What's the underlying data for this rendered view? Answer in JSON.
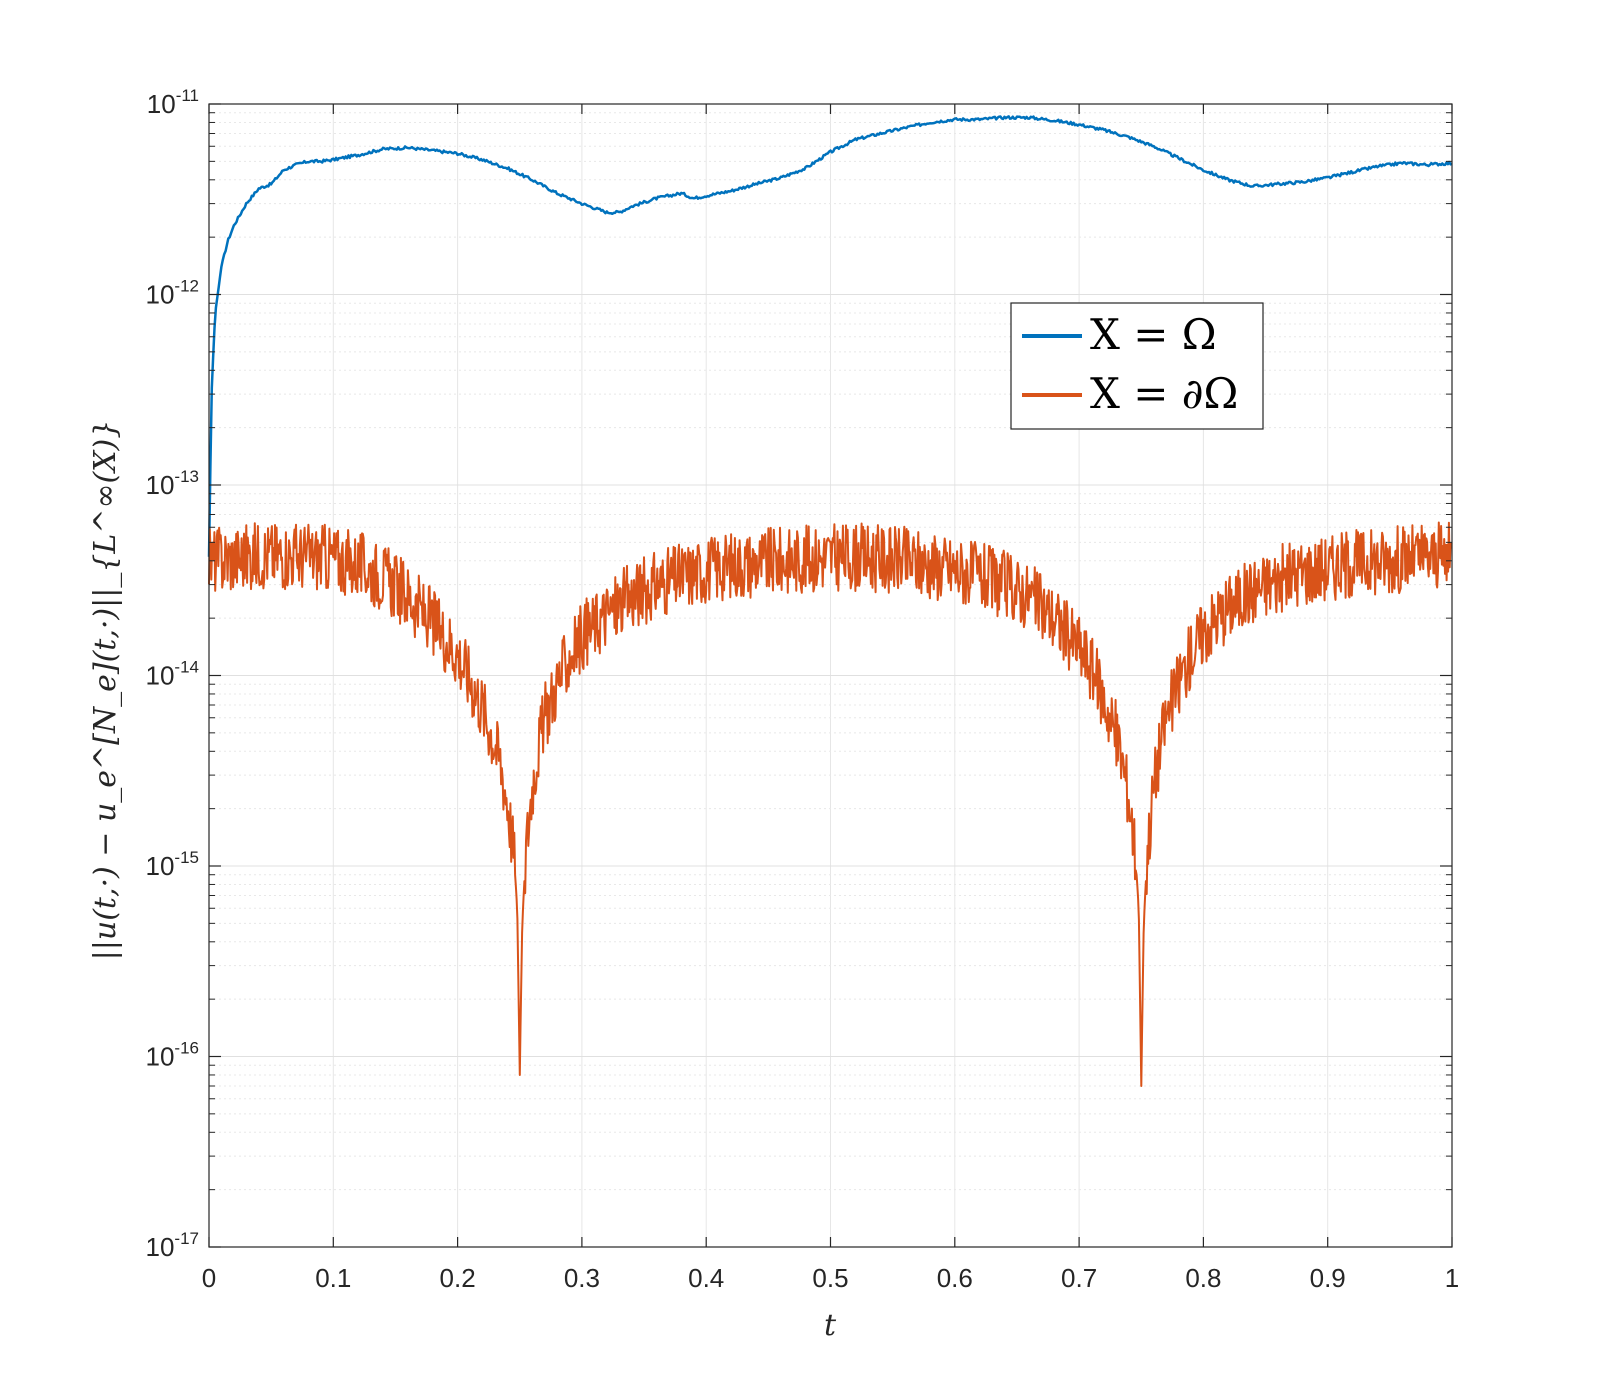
{
  "chart_data": {
    "type": "line",
    "xlabel": "t",
    "ylabel": "||u(t,·) − u_e^[N_e](t,·)||_{L^∞(X)}",
    "xlim": [
      0,
      1
    ],
    "ylim": [
      1e-17,
      1e-11
    ],
    "yscale": "log",
    "grid": true,
    "legend_position": "upper-right",
    "x_ticks": [
      "0",
      "0.1",
      "0.2",
      "0.3",
      "0.4",
      "0.5",
      "0.6",
      "0.7",
      "0.8",
      "0.9",
      "1"
    ],
    "y_ticks": [
      {
        "base": "10",
        "exp": "-11"
      },
      {
        "base": "10",
        "exp": "-12"
      },
      {
        "base": "10",
        "exp": "-13"
      },
      {
        "base": "10",
        "exp": "-14"
      },
      {
        "base": "10",
        "exp": "-15"
      },
      {
        "base": "10",
        "exp": "-16"
      },
      {
        "base": "10",
        "exp": "-17"
      }
    ],
    "series": [
      {
        "name": "X = Ω",
        "color": "#0072BD",
        "x": [
          0,
          0.002,
          0.005,
          0.01,
          0.015,
          0.02,
          0.03,
          0.04,
          0.05,
          0.06,
          0.07,
          0.08,
          0.09,
          0.1,
          0.12,
          0.14,
          0.16,
          0.18,
          0.2,
          0.22,
          0.24,
          0.26,
          0.28,
          0.3,
          0.32,
          0.33,
          0.34,
          0.36,
          0.38,
          0.39,
          0.4,
          0.42,
          0.44,
          0.46,
          0.48,
          0.5,
          0.52,
          0.54,
          0.56,
          0.58,
          0.6,
          0.62,
          0.64,
          0.66,
          0.68,
          0.7,
          0.72,
          0.74,
          0.76,
          0.78,
          0.8,
          0.82,
          0.84,
          0.86,
          0.88,
          0.9,
          0.92,
          0.94,
          0.96,
          0.98,
          1.0
        ],
        "y": [
          4.2e-14,
          3e-13,
          8e-13,
          1.4e-12,
          1.9e-12,
          2.3e-12,
          3e-12,
          3.6e-12,
          3.8e-12,
          4.5e-12,
          4.8e-12,
          5e-12,
          5e-12,
          5.1e-12,
          5.4e-12,
          5.8e-12,
          5.9e-12,
          5.7e-12,
          5.5e-12,
          5.1e-12,
          4.6e-12,
          4e-12,
          3.4e-12,
          3e-12,
          2.7e-12,
          2.7e-12,
          2.9e-12,
          3.2e-12,
          3.4e-12,
          3.2e-12,
          3.3e-12,
          3.5e-12,
          3.8e-12,
          4.1e-12,
          4.6e-12,
          5.6e-12,
          6.5e-12,
          7e-12,
          7.5e-12,
          8e-12,
          8.3e-12,
          8.3e-12,
          8.5e-12,
          8.5e-12,
          8.2e-12,
          7.8e-12,
          7.3e-12,
          6.7e-12,
          6e-12,
          5.2e-12,
          4.5e-12,
          4e-12,
          3.7e-12,
          3.8e-12,
          3.9e-12,
          4.1e-12,
          4.4e-12,
          4.7e-12,
          4.9e-12,
          4.8e-12,
          4.9e-12
        ]
      },
      {
        "name": "X = ∂Ω",
        "color": "#D95319",
        "x": [
          0,
          0.02,
          0.04,
          0.06,
          0.08,
          0.1,
          0.12,
          0.14,
          0.16,
          0.18,
          0.2,
          0.21,
          0.22,
          0.23,
          0.235,
          0.24,
          0.245,
          0.248,
          0.25,
          0.252,
          0.255,
          0.26,
          0.265,
          0.27,
          0.28,
          0.29,
          0.3,
          0.32,
          0.34,
          0.36,
          0.38,
          0.4,
          0.42,
          0.44,
          0.46,
          0.48,
          0.5,
          0.52,
          0.54,
          0.56,
          0.58,
          0.6,
          0.62,
          0.64,
          0.66,
          0.68,
          0.7,
          0.71,
          0.72,
          0.73,
          0.735,
          0.74,
          0.745,
          0.748,
          0.75,
          0.752,
          0.755,
          0.76,
          0.765,
          0.77,
          0.78,
          0.79,
          0.8,
          0.82,
          0.84,
          0.86,
          0.88,
          0.9,
          0.92,
          0.94,
          0.96,
          0.98,
          1.0
        ],
        "y": [
          4e-14,
          4.1e-14,
          4.3e-14,
          4.3e-14,
          4.2e-14,
          4.1e-14,
          3.8e-14,
          3.3e-14,
          2.6e-14,
          1.9e-14,
          1.3e-14,
          9.5e-15,
          6.8e-15,
          4.4e-15,
          3.3e-15,
          2.2e-15,
          1.2e-15,
          6e-16,
          8e-17,
          5e-16,
          1.2e-15,
          2.6e-15,
          4.2e-15,
          6e-15,
          9e-15,
          1.25e-14,
          1.6e-14,
          2.1e-14,
          2.6e-14,
          3e-14,
          3.3e-14,
          3.6e-14,
          3.8e-14,
          3.9e-14,
          4e-14,
          4.1e-14,
          4.2e-14,
          4.2e-14,
          4.1e-14,
          4e-14,
          3.8e-14,
          3.6e-14,
          3.3e-14,
          3e-14,
          2.6e-14,
          2e-14,
          1.4e-14,
          1.1e-14,
          7.5e-15,
          4.8e-15,
          3.5e-15,
          2.3e-15,
          1.2e-15,
          6e-16,
          7e-17,
          5e-16,
          1.2e-15,
          2.6e-15,
          4.2e-15,
          6e-15,
          9e-15,
          1.3e-14,
          1.7e-14,
          2.3e-14,
          2.8e-14,
          3.2e-14,
          3.5e-14,
          3.7e-14,
          3.9e-14,
          4e-14,
          4.1e-14,
          4.2e-14,
          4.2e-14
        ],
        "noise": true
      }
    ]
  }
}
